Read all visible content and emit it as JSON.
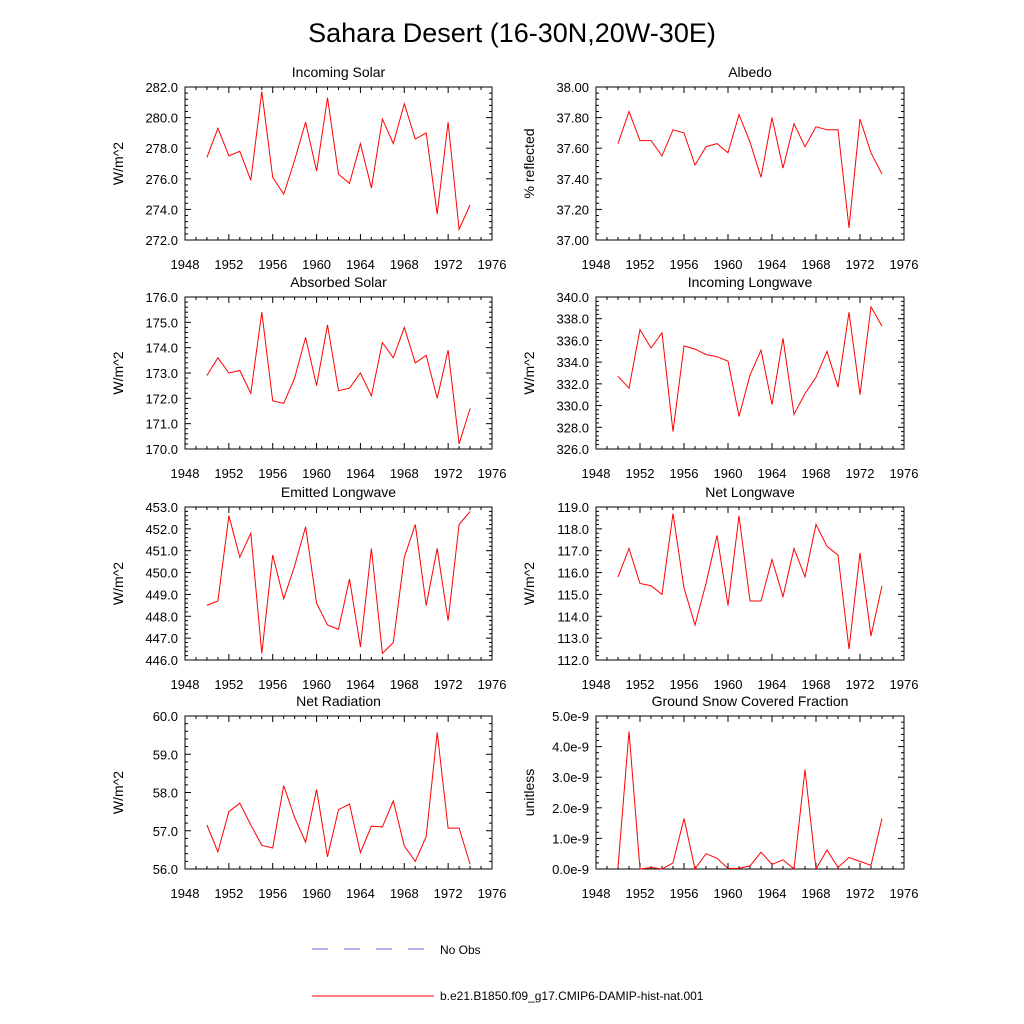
{
  "title": "Sahara Desert (16-30N,20W-30E)",
  "colors": {
    "model": "#ff0000",
    "obs": "#6a6ad8",
    "axis": "#000000"
  },
  "legend": {
    "obs_label": "No Obs",
    "model_label": "b.e21.B1850.f09_g17.CMIP6-DAMIP-hist-nat.001"
  },
  "chart_data": [
    {
      "type": "line",
      "title": "Incoming Solar",
      "ylabel": "W/m^2",
      "xlim": [
        1948,
        1976
      ],
      "ylim": [
        272,
        282
      ],
      "xticks": [
        "1948",
        "1952",
        "1956",
        "1960",
        "1964",
        "1968",
        "1972",
        "1976"
      ],
      "yticks": [
        "272.0",
        "274.0",
        "276.0",
        "278.0",
        "280.0",
        "282.0"
      ],
      "series": [
        {
          "x": [
            1950,
            1951,
            1952,
            1953,
            1954,
            1955,
            1956,
            1957,
            1958,
            1959,
            1960,
            1961,
            1962,
            1963,
            1964,
            1965,
            1966,
            1967,
            1968,
            1969,
            1970,
            1971,
            1972,
            1973,
            1974
          ],
          "values": [
            277.4,
            279.3,
            277.5,
            277.8,
            275.9,
            281.7,
            276.1,
            275.0,
            277.2,
            279.7,
            276.5,
            281.3,
            276.3,
            275.7,
            278.3,
            275.4,
            279.9,
            278.3,
            280.9,
            278.6,
            279.0,
            273.7,
            279.7,
            272.7,
            274.3
          ]
        }
      ]
    },
    {
      "type": "line",
      "title": "Albedo",
      "ylabel": "% reflected",
      "xlim": [
        1948,
        1976
      ],
      "ylim": [
        37.0,
        38.0
      ],
      "xticks": [
        "1948",
        "1952",
        "1956",
        "1960",
        "1964",
        "1968",
        "1972",
        "1976"
      ],
      "yticks": [
        "37.00",
        "37.20",
        "37.40",
        "37.60",
        "37.80",
        "38.00"
      ],
      "series": [
        {
          "x": [
            1950,
            1951,
            1952,
            1953,
            1954,
            1955,
            1956,
            1957,
            1958,
            1959,
            1960,
            1961,
            1962,
            1963,
            1964,
            1965,
            1966,
            1967,
            1968,
            1969,
            1970,
            1971,
            1972,
            1973,
            1974
          ],
          "values": [
            37.63,
            37.84,
            37.65,
            37.65,
            37.55,
            37.72,
            37.7,
            37.49,
            37.61,
            37.63,
            37.57,
            37.82,
            37.64,
            37.41,
            37.8,
            37.47,
            37.76,
            37.61,
            37.74,
            37.72,
            37.72,
            37.08,
            37.79,
            37.57,
            37.43
          ]
        }
      ]
    },
    {
      "type": "line",
      "title": "Absorbed Solar",
      "ylabel": "W/m^2",
      "xlim": [
        1948,
        1976
      ],
      "ylim": [
        170,
        176
      ],
      "xticks": [
        "1948",
        "1952",
        "1956",
        "1960",
        "1964",
        "1968",
        "1972",
        "1976"
      ],
      "yticks": [
        "170.0",
        "171.0",
        "172.0",
        "173.0",
        "174.0",
        "175.0",
        "176.0"
      ],
      "series": [
        {
          "x": [
            1950,
            1951,
            1952,
            1953,
            1954,
            1955,
            1956,
            1957,
            1958,
            1959,
            1960,
            1961,
            1962,
            1963,
            1964,
            1965,
            1966,
            1967,
            1968,
            1969,
            1970,
            1971,
            1972,
            1973,
            1974
          ],
          "values": [
            172.9,
            173.6,
            173.0,
            173.1,
            172.2,
            175.4,
            171.9,
            171.8,
            172.8,
            174.4,
            172.5,
            174.9,
            172.3,
            172.4,
            173.0,
            172.1,
            174.2,
            173.6,
            174.8,
            173.4,
            173.7,
            172.0,
            173.9,
            170.2,
            171.6
          ]
        }
      ]
    },
    {
      "type": "line",
      "title": "Incoming Longwave",
      "ylabel": "W/m^2",
      "xlim": [
        1948,
        1976
      ],
      "ylim": [
        326,
        340
      ],
      "xticks": [
        "1948",
        "1952",
        "1956",
        "1960",
        "1964",
        "1968",
        "1972",
        "1976"
      ],
      "yticks": [
        "326.0",
        "328.0",
        "330.0",
        "332.0",
        "334.0",
        "336.0",
        "338.0",
        "340.0"
      ],
      "series": [
        {
          "x": [
            1950,
            1951,
            1952,
            1953,
            1954,
            1955,
            1956,
            1957,
            1958,
            1959,
            1960,
            1961,
            1962,
            1963,
            1964,
            1965,
            1966,
            1967,
            1968,
            1969,
            1970,
            1971,
            1972,
            1973,
            1974
          ],
          "values": [
            332.7,
            331.6,
            337.0,
            335.3,
            336.7,
            327.6,
            335.5,
            335.2,
            334.7,
            334.5,
            334.1,
            329.0,
            332.8,
            335.1,
            330.1,
            336.2,
            329.2,
            331.1,
            332.6,
            335.0,
            331.7,
            338.6,
            331.0,
            339.1,
            337.3
          ]
        }
      ]
    },
    {
      "type": "line",
      "title": "Emitted Longwave",
      "ylabel": "W/m^2",
      "xlim": [
        1948,
        1976
      ],
      "ylim": [
        446,
        453
      ],
      "xticks": [
        "1948",
        "1952",
        "1956",
        "1960",
        "1964",
        "1968",
        "1972",
        "1976"
      ],
      "yticks": [
        "446.0",
        "447.0",
        "448.0",
        "449.0",
        "450.0",
        "451.0",
        "452.0",
        "453.0"
      ],
      "series": [
        {
          "x": [
            1950,
            1951,
            1952,
            1953,
            1954,
            1955,
            1956,
            1957,
            1958,
            1959,
            1960,
            1961,
            1962,
            1963,
            1964,
            1965,
            1966,
            1967,
            1968,
            1969,
            1970,
            1971,
            1972,
            1973,
            1974
          ],
          "values": [
            448.5,
            448.7,
            452.6,
            450.7,
            451.8,
            446.3,
            450.8,
            448.8,
            450.3,
            452.1,
            448.6,
            447.6,
            447.4,
            449.7,
            446.6,
            451.1,
            446.3,
            446.8,
            450.7,
            452.2,
            448.5,
            451.1,
            447.8,
            452.2,
            452.8
          ]
        }
      ]
    },
    {
      "type": "line",
      "title": "Net Longwave",
      "ylabel": "W/m^2",
      "xlim": [
        1948,
        1976
      ],
      "ylim": [
        112,
        119
      ],
      "xticks": [
        "1948",
        "1952",
        "1956",
        "1960",
        "1964",
        "1968",
        "1972",
        "1976"
      ],
      "yticks": [
        "112.0",
        "113.0",
        "114.0",
        "115.0",
        "116.0",
        "117.0",
        "118.0",
        "119.0"
      ],
      "series": [
        {
          "x": [
            1950,
            1951,
            1952,
            1953,
            1954,
            1955,
            1956,
            1957,
            1958,
            1959,
            1960,
            1961,
            1962,
            1963,
            1964,
            1965,
            1966,
            1967,
            1968,
            1969,
            1970,
            1971,
            1972,
            1973,
            1974
          ],
          "values": [
            115.8,
            117.1,
            115.5,
            115.4,
            115.0,
            118.7,
            115.3,
            113.6,
            115.5,
            117.7,
            114.5,
            118.6,
            114.7,
            114.7,
            116.6,
            114.9,
            117.1,
            115.8,
            118.2,
            117.2,
            116.8,
            112.5,
            116.9,
            113.1,
            115.4
          ]
        }
      ]
    },
    {
      "type": "line",
      "title": "Net Radiation",
      "ylabel": "W/m^2",
      "xlim": [
        1948,
        1976
      ],
      "ylim": [
        56,
        60
      ],
      "xticks": [
        "1948",
        "1952",
        "1956",
        "1960",
        "1964",
        "1968",
        "1972",
        "1976"
      ],
      "yticks": [
        "56.0",
        "57.0",
        "58.0",
        "59.0",
        "60.0"
      ],
      "series": [
        {
          "x": [
            1950,
            1951,
            1952,
            1953,
            1954,
            1955,
            1956,
            1957,
            1958,
            1959,
            1960,
            1961,
            1962,
            1963,
            1964,
            1965,
            1966,
            1967,
            1968,
            1969,
            1970,
            1971,
            1972,
            1973,
            1974
          ],
          "values": [
            57.15,
            56.45,
            57.5,
            57.72,
            57.15,
            56.62,
            56.55,
            58.18,
            57.35,
            56.7,
            58.08,
            56.32,
            57.55,
            57.7,
            56.43,
            57.12,
            57.1,
            57.78,
            56.6,
            56.2,
            56.85,
            59.57,
            57.07,
            57.07,
            56.12
          ]
        }
      ]
    },
    {
      "type": "line",
      "title": "Ground Snow Covered Fraction",
      "ylabel": "unitless",
      "xlim": [
        1948,
        1976
      ],
      "ylim": [
        0,
        5e-09
      ],
      "xticks": [
        "1948",
        "1952",
        "1956",
        "1960",
        "1964",
        "1968",
        "1972",
        "1976"
      ],
      "yticks": [
        "0.0e-9",
        "1.0e-9",
        "2.0e-9",
        "3.0e-9",
        "4.0e-9",
        "5.0e-9"
      ],
      "series": [
        {
          "x": [
            1950,
            1951,
            1952,
            1953,
            1954,
            1955,
            1956,
            1957,
            1958,
            1959,
            1960,
            1961,
            1962,
            1963,
            1964,
            1965,
            1966,
            1967,
            1968,
            1969,
            1970,
            1971,
            1972,
            1973,
            1974
          ],
          "values": [
            5e-11,
            4.5e-09,
            0.0,
            5e-11,
            0.0,
            2e-10,
            1.65e-09,
            0.0,
            5e-10,
            3.5e-10,
            2e-11,
            2e-11,
            1e-10,
            5.5e-10,
            1.5e-10,
            3e-10,
            0.0,
            3.25e-09,
            0.0,
            6.2e-10,
            5e-11,
            3.8e-10,
            2.5e-10,
            1.2e-10,
            1.65e-09
          ]
        }
      ]
    }
  ]
}
